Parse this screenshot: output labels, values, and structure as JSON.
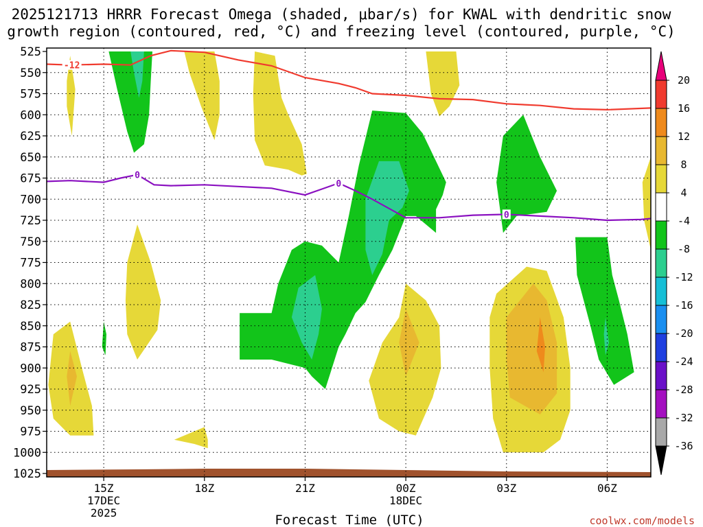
{
  "chart_data": {
    "type": "contour",
    "title_lines": [
      "2025121713 HRRR Forecast Omega (shaded, μbar/s) for KWAL with dendritic snow",
      "growth region (contoured, red, °C) and freezing level (contoured, purple, °C)"
    ],
    "xlabel": "Forecast Time (UTC)",
    "credit": "coolwx.com/models",
    "x_range_hours": [
      13.3,
      31.3
    ],
    "y_range_mb": [
      1025,
      525
    ],
    "y_ticks": [
      525,
      550,
      575,
      600,
      625,
      650,
      675,
      700,
      725,
      750,
      775,
      800,
      825,
      850,
      875,
      900,
      925,
      950,
      975,
      1000,
      1025
    ],
    "x_ticks": [
      {
        "hour": 15,
        "lines": [
          "15Z",
          "17DEC",
          "2025"
        ]
      },
      {
        "hour": 18,
        "lines": [
          "18Z"
        ]
      },
      {
        "hour": 21,
        "lines": [
          "21Z"
        ]
      },
      {
        "hour": 24,
        "lines": [
          "00Z",
          "18DEC"
        ]
      },
      {
        "hour": 27,
        "lines": [
          "03Z"
        ]
      },
      {
        "hour": 30,
        "lines": [
          "06Z"
        ]
      }
    ],
    "colorbar": {
      "labels": [
        "20",
        "16",
        "12",
        "8",
        "4",
        "-4",
        "-8",
        "-12",
        "-16",
        "-20",
        "-24",
        "-28",
        "-32",
        "-36"
      ],
      "colors": [
        "#e8007a",
        "#f03a2e",
        "#ef8a1c",
        "#e8b830",
        "#e6d838",
        "#ffffff",
        "#12c41a",
        "#2ccf8f",
        "#16bfd6",
        "#1a8ff0",
        "#1f3fe0",
        "#6a10c8",
        "#a410c0",
        "#a8a8a8",
        "#000000"
      ]
    },
    "shading_colors": {
      "pos_4_8": "#e6d838",
      "pos_8_12": "#e8b830",
      "pos_12_16": "#ef8a1c",
      "neg_4_8": "#12c41a",
      "neg_8_12": "#2ccf8f",
      "neg_12_16": "#16bfd6"
    },
    "shaded_regions": [
      {
        "name": "omega-up-late",
        "level": "neg_4_8",
        "pts": [
          [
            15.15,
            525
          ],
          [
            16.45,
            525
          ],
          [
            16.4,
            560
          ],
          [
            16.35,
            600
          ],
          [
            16.2,
            635
          ],
          [
            15.9,
            645
          ],
          [
            15.7,
            620
          ],
          [
            15.4,
            570
          ],
          [
            15.15,
            525
          ]
        ]
      },
      {
        "name": "omega-up-late-core",
        "level": "neg_8_12",
        "pts": [
          [
            15.8,
            525
          ],
          [
            16.2,
            525
          ],
          [
            16.15,
            560
          ],
          [
            16.05,
            580
          ],
          [
            15.9,
            550
          ],
          [
            15.8,
            525
          ]
        ]
      },
      {
        "name": "omega-down-18z-upper",
        "level": "pos_4_8",
        "pts": [
          [
            17.4,
            525
          ],
          [
            18.3,
            525
          ],
          [
            18.45,
            560
          ],
          [
            18.45,
            600
          ],
          [
            18.3,
            630
          ],
          [
            17.9,
            590
          ],
          [
            17.55,
            550
          ],
          [
            17.4,
            525
          ]
        ]
      },
      {
        "name": "omega-down-20z-upper",
        "level": "pos_4_8",
        "pts": [
          [
            19.5,
            525
          ],
          [
            20.1,
            530
          ],
          [
            20.3,
            580
          ],
          [
            20.5,
            600
          ],
          [
            20.9,
            635
          ],
          [
            21.05,
            670
          ],
          [
            20.9,
            672
          ],
          [
            20.5,
            665
          ],
          [
            19.8,
            660
          ],
          [
            19.5,
            630
          ],
          [
            19.45,
            575
          ],
          [
            19.5,
            525
          ]
        ]
      },
      {
        "name": "omega-down-00z-upper",
        "level": "pos_4_8",
        "pts": [
          [
            24.6,
            525
          ],
          [
            25.5,
            525
          ],
          [
            25.6,
            565
          ],
          [
            25.3,
            590
          ],
          [
            25.0,
            602
          ],
          [
            24.75,
            575
          ],
          [
            24.6,
            525
          ]
        ]
      },
      {
        "name": "omega-down-14z-thin",
        "level": "pos_4_8",
        "pts": [
          [
            14.0,
            530
          ],
          [
            14.15,
            570
          ],
          [
            14.05,
            625
          ],
          [
            13.9,
            590
          ],
          [
            13.9,
            560
          ],
          [
            14.0,
            530
          ]
        ]
      },
      {
        "name": "omega-up-main",
        "level": "neg_4_8",
        "pts": [
          [
            23.0,
            595
          ],
          [
            24.0,
            598
          ],
          [
            24.5,
            622
          ],
          [
            24.9,
            655
          ],
          [
            25.2,
            680
          ],
          [
            25.1,
            695
          ],
          [
            24.9,
            712
          ],
          [
            24.9,
            740
          ],
          [
            24.3,
            720
          ],
          [
            24.0,
            720
          ],
          [
            23.6,
            760
          ],
          [
            23.2,
            790
          ],
          [
            22.8,
            822
          ],
          [
            22.5,
            835
          ],
          [
            22.2,
            860
          ],
          [
            22.0,
            875
          ],
          [
            21.8,
            900
          ],
          [
            21.6,
            925
          ],
          [
            21.2,
            910
          ],
          [
            21.0,
            900
          ],
          [
            20.0,
            890
          ],
          [
            19.05,
            890
          ],
          [
            19.05,
            835
          ],
          [
            20.0,
            835
          ],
          [
            20.2,
            800
          ],
          [
            20.6,
            760
          ],
          [
            21.0,
            750
          ],
          [
            21.5,
            755
          ],
          [
            22.0,
            775
          ],
          [
            22.3,
            720
          ],
          [
            22.6,
            660
          ],
          [
            23.0,
            595
          ]
        ]
      },
      {
        "name": "omega-up-main-core-upper",
        "level": "neg_8_12",
        "pts": [
          [
            23.2,
            655
          ],
          [
            23.8,
            655
          ],
          [
            24.1,
            690
          ],
          [
            23.9,
            710
          ],
          [
            23.5,
            725
          ],
          [
            23.3,
            765
          ],
          [
            23.0,
            790
          ],
          [
            22.8,
            760
          ],
          [
            22.8,
            700
          ],
          [
            23.2,
            655
          ]
        ]
      },
      {
        "name": "omega-up-main-core-lower",
        "level": "neg_8_12",
        "pts": [
          [
            20.8,
            805
          ],
          [
            21.3,
            790
          ],
          [
            21.5,
            830
          ],
          [
            21.4,
            860
          ],
          [
            21.2,
            890
          ],
          [
            20.9,
            870
          ],
          [
            20.6,
            840
          ],
          [
            20.8,
            805
          ]
        ]
      },
      {
        "name": "omega-up-03z",
        "level": "neg_4_8",
        "pts": [
          [
            26.9,
            625
          ],
          [
            27.5,
            600
          ],
          [
            28.0,
            650
          ],
          [
            28.5,
            690
          ],
          [
            28.2,
            715
          ],
          [
            27.3,
            720
          ],
          [
            26.9,
            740
          ],
          [
            26.7,
            680
          ],
          [
            26.9,
            625
          ]
        ]
      },
      {
        "name": "omega-down-16z-mid",
        "level": "pos_4_8",
        "pts": [
          [
            16.0,
            730
          ],
          [
            16.4,
            775
          ],
          [
            16.7,
            820
          ],
          [
            16.6,
            855
          ],
          [
            16.0,
            890
          ],
          [
            15.7,
            860
          ],
          [
            15.65,
            820
          ],
          [
            15.7,
            775
          ],
          [
            16.0,
            730
          ]
        ]
      },
      {
        "name": "omega-down-14z-low",
        "level": "pos_4_8",
        "pts": [
          [
            13.5,
            860
          ],
          [
            14.0,
            845
          ],
          [
            14.35,
            900
          ],
          [
            14.65,
            945
          ],
          [
            14.7,
            980
          ],
          [
            14.0,
            980
          ],
          [
            13.5,
            960
          ],
          [
            13.35,
            920
          ],
          [
            13.5,
            860
          ]
        ]
      },
      {
        "name": "omega-down-14z-low-core",
        "level": "pos_8_12",
        "pts": [
          [
            14.0,
            880
          ],
          [
            14.2,
            910
          ],
          [
            14.0,
            945
          ],
          [
            13.9,
            910
          ],
          [
            14.0,
            880
          ]
        ]
      },
      {
        "name": "omega-down-00z-low",
        "level": "pos_4_8",
        "pts": [
          [
            23.8,
            840
          ],
          [
            24.0,
            800
          ],
          [
            24.6,
            820
          ],
          [
            25.0,
            850
          ],
          [
            25.05,
            900
          ],
          [
            24.8,
            935
          ],
          [
            24.3,
            980
          ],
          [
            23.8,
            975
          ],
          [
            23.2,
            960
          ],
          [
            22.9,
            915
          ],
          [
            23.3,
            870
          ],
          [
            23.8,
            840
          ]
        ]
      },
      {
        "name": "omega-down-00z-low-core",
        "level": "pos_8_12",
        "pts": [
          [
            24.0,
            830
          ],
          [
            24.4,
            870
          ],
          [
            24.0,
            910
          ],
          [
            23.8,
            870
          ],
          [
            24.0,
            830
          ]
        ]
      },
      {
        "name": "omega-down-03z-low",
        "level": "pos_4_8",
        "pts": [
          [
            27.6,
            780
          ],
          [
            28.2,
            785
          ],
          [
            28.7,
            840
          ],
          [
            28.9,
            900
          ],
          [
            28.9,
            950
          ],
          [
            28.6,
            985
          ],
          [
            28.1,
            1000
          ],
          [
            26.9,
            1000
          ],
          [
            26.6,
            960
          ],
          [
            26.5,
            900
          ],
          [
            26.5,
            840
          ],
          [
            26.7,
            812
          ],
          [
            27.6,
            780
          ]
        ]
      },
      {
        "name": "omega-down-03z-low-mid",
        "level": "pos_8_12",
        "pts": [
          [
            27.8,
            800
          ],
          [
            28.2,
            820
          ],
          [
            28.5,
            870
          ],
          [
            28.5,
            930
          ],
          [
            28.0,
            955
          ],
          [
            27.1,
            935
          ],
          [
            27.0,
            890
          ],
          [
            27.0,
            840
          ],
          [
            27.8,
            800
          ]
        ]
      },
      {
        "name": "omega-down-03z-low-core",
        "level": "pos_12_16",
        "pts": [
          [
            28.0,
            840
          ],
          [
            28.15,
            875
          ],
          [
            28.1,
            905
          ],
          [
            27.9,
            880
          ],
          [
            28.0,
            840
          ]
        ]
      },
      {
        "name": "omega-up-06z",
        "level": "neg_4_8",
        "pts": [
          [
            29.05,
            745
          ],
          [
            30.0,
            745
          ],
          [
            30.15,
            790
          ],
          [
            30.35,
            820
          ],
          [
            30.6,
            860
          ],
          [
            30.8,
            905
          ],
          [
            30.2,
            920
          ],
          [
            29.75,
            890
          ],
          [
            29.5,
            850
          ],
          [
            29.1,
            790
          ],
          [
            29.05,
            745
          ]
        ]
      },
      {
        "name": "omega-up-06z-core",
        "level": "neg_8_12",
        "pts": [
          [
            29.95,
            840
          ],
          [
            30.05,
            870
          ],
          [
            29.95,
            885
          ],
          [
            29.9,
            860
          ],
          [
            29.95,
            840
          ]
        ]
      },
      {
        "name": "omega-up-15z-speck",
        "level": "neg_4_8",
        "pts": [
          [
            15.0,
            845
          ],
          [
            15.08,
            860
          ],
          [
            15.05,
            885
          ],
          [
            14.95,
            875
          ],
          [
            15.0,
            845
          ]
        ]
      },
      {
        "name": "omega-down-18z-sfc",
        "level": "pos_4_8",
        "pts": [
          [
            18.0,
            970
          ],
          [
            18.1,
            985
          ],
          [
            18.1,
            995
          ],
          [
            17.7,
            990
          ],
          [
            17.1,
            985
          ],
          [
            18.0,
            970
          ]
        ]
      },
      {
        "name": "omega-down-07z-edge",
        "level": "pos_4_8",
        "pts": [
          [
            31.3,
            650
          ],
          [
            31.3,
            760
          ],
          [
            31.1,
            725
          ],
          [
            31.05,
            680
          ],
          [
            31.3,
            650
          ]
        ]
      }
    ],
    "dgz_line": {
      "label": "-12",
      "color": "#f03a2e",
      "points": [
        [
          13.3,
          540
        ],
        [
          14.0,
          541
        ],
        [
          15.0,
          540
        ],
        [
          15.8,
          541
        ],
        [
          16.4,
          530
        ],
        [
          17.0,
          524
        ],
        [
          18.0,
          526
        ],
        [
          19.0,
          535
        ],
        [
          20.0,
          542
        ],
        [
          21.0,
          556
        ],
        [
          22.0,
          563
        ],
        [
          22.5,
          568
        ],
        [
          23.0,
          575
        ],
        [
          24.0,
          577
        ],
        [
          25.0,
          581
        ],
        [
          26.0,
          582
        ],
        [
          27.0,
          587
        ],
        [
          28.0,
          589
        ],
        [
          29.0,
          593
        ],
        [
          30.0,
          594
        ],
        [
          31.3,
          592
        ]
      ]
    },
    "freezing_line": {
      "label": "0",
      "color": "#8a10c0",
      "points": [
        [
          13.3,
          679
        ],
        [
          14.0,
          678
        ],
        [
          15.0,
          680
        ],
        [
          15.5,
          675
        ],
        [
          16.0,
          671
        ],
        [
          16.5,
          683
        ],
        [
          17.0,
          684
        ],
        [
          18.0,
          683
        ],
        [
          19.0,
          685
        ],
        [
          20.0,
          687
        ],
        [
          21.0,
          695
        ],
        [
          21.5,
          688
        ],
        [
          22.0,
          681
        ],
        [
          22.5,
          690
        ],
        [
          23.0,
          700
        ],
        [
          24.0,
          722
        ],
        [
          25.0,
          722
        ],
        [
          26.0,
          719
        ],
        [
          27.0,
          718
        ],
        [
          28.0,
          720
        ],
        [
          29.0,
          722
        ],
        [
          30.0,
          725
        ],
        [
          31.0,
          724
        ],
        [
          31.3,
          723
        ]
      ]
    },
    "terrain_color": "#a0522d"
  }
}
